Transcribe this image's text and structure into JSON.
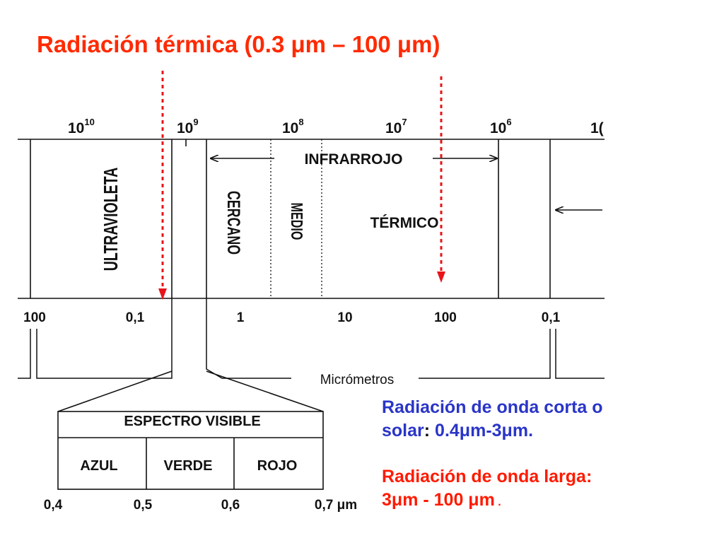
{
  "title": "Radiación térmica (0.3 μm – 100 μm)",
  "frequency_scale": {
    "base": "10",
    "exponents": [
      "10",
      "9",
      "8",
      "7",
      "6"
    ],
    "cut_label": "1("
  },
  "wavelength_scale": {
    "ticks": [
      "100",
      "0,1",
      "1",
      "10",
      "100",
      "0,1"
    ],
    "unit_label": "Micrómetros"
  },
  "bands": {
    "ultraviolet": "ULTRAVIOLETA",
    "infrared": "INFRARROJO",
    "near": "CERCANO",
    "middle": "MEDIO",
    "thermal": "TÉRMICO"
  },
  "visible_spectrum": {
    "title": "ESPECTRO VISIBLE",
    "colors": [
      "AZUL",
      "VERDE",
      "ROJO"
    ],
    "ticks": [
      "0,4",
      "0,5",
      "0,6",
      "0,7 μm"
    ]
  },
  "notes": {
    "shortwave_line1": "Radiación de onda corta o",
    "shortwave_word": "solar",
    "shortwave_colon": ":",
    "shortwave_range": " 0.4μm-3μm.",
    "longwave_line1": "Radiación de onda larga:",
    "longwave_range": "3μm - 100 μm",
    "longwave_dot": " ."
  },
  "colors": {
    "title": "#ff2a00",
    "markers": "#e8141a",
    "shortwave_text": "#2a35c8",
    "longwave_text": "#ff1a00",
    "diagram_lines": "#111111"
  }
}
